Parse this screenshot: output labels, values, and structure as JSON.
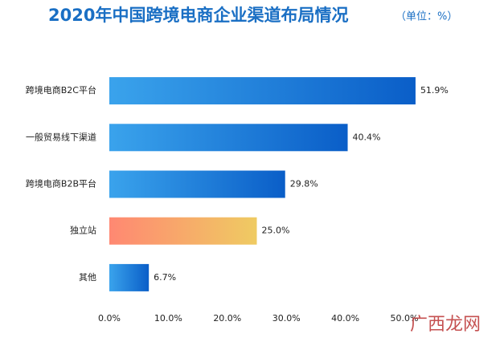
{
  "chart_data": {
    "type": "bar",
    "orientation": "horizontal",
    "title": "2020年中国跨境电商企业渠道布局情况",
    "subtitle": "（单位：%）",
    "categories": [
      "跨境电商B2C平台",
      "一般贸易线下渠道",
      "跨境电商B2B平台",
      "独立站",
      "其他"
    ],
    "values": [
      51.9,
      40.4,
      29.8,
      25.0,
      6.7
    ],
    "value_labels": [
      "51.9%",
      "40.4%",
      "29.8%",
      "25.0%",
      "6.7%"
    ],
    "gradients": [
      [
        "#3aa3ec",
        "#0a5ec8"
      ],
      [
        "#3aa3ec",
        "#0a5ec8"
      ],
      [
        "#3aa3ec",
        "#0a5ec8"
      ],
      [
        "#ff8872",
        "#efcb62"
      ],
      [
        "#3aa3ec",
        "#0a5ec8"
      ]
    ],
    "xlim": [
      0,
      50
    ],
    "xticks": [
      {
        "value": 0,
        "label": "0.0%"
      },
      {
        "value": 10,
        "label": "10.0%"
      },
      {
        "value": 20,
        "label": "20.0%"
      },
      {
        "value": 30,
        "label": "30.0%"
      },
      {
        "value": 40,
        "label": "40.0%"
      },
      {
        "value": 50,
        "label": "50.0%"
      }
    ],
    "watermark": "广西龙网"
  }
}
